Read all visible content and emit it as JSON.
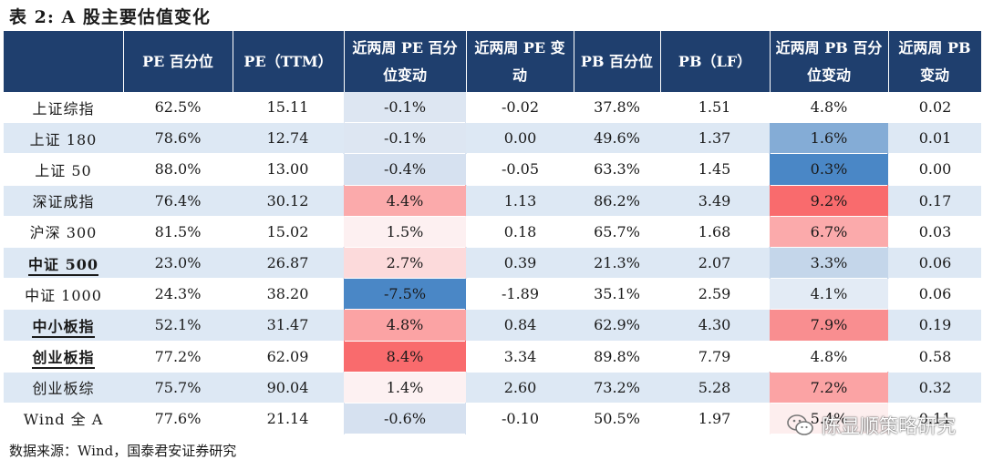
{
  "title": "表 2:  A 股主要估值变化",
  "table": {
    "headers": [
      "",
      "PE 百分位",
      "PE（TTM）",
      "近两周 PE 百分位变动",
      "近两周 PE 变动",
      "PB 百分位",
      "PB（LF）",
      "近两周 PB 百分位变动",
      "近两周 PB 变动"
    ],
    "rows": [
      {
        "name": "上证综指",
        "highlight": false,
        "cells": [
          "62.5%",
          "15.11",
          "-0.1%",
          "-0.02",
          "37.8%",
          "1.51",
          "4.8%",
          "0.02"
        ],
        "pe_heat": "#dde6f2",
        "pb_heat": "#ffffff"
      },
      {
        "name": "上证 180",
        "highlight": false,
        "cells": [
          "78.6%",
          "12.74",
          "-0.1%",
          "0.00",
          "49.6%",
          "1.37",
          "1.6%",
          "0.01"
        ],
        "pe_heat": "#dde6f2",
        "pb_heat": "#84acd6"
      },
      {
        "name": "上证 50",
        "highlight": false,
        "cells": [
          "88.0%",
          "13.00",
          "-0.4%",
          "-0.05",
          "63.3%",
          "1.45",
          "0.3%",
          "0.00"
        ],
        "pe_heat": "#d6e1f0",
        "pb_heat": "#4a87c6"
      },
      {
        "name": "深证成指",
        "highlight": false,
        "cells": [
          "76.4%",
          "30.12",
          "4.4%",
          "1.13",
          "86.2%",
          "3.49",
          "9.2%",
          "0.17"
        ],
        "pe_heat": "#fbaaab",
        "pb_heat": "#f96b6d"
      },
      {
        "name": "沪深 300",
        "highlight": false,
        "cells": [
          "81.5%",
          "15.02",
          "1.5%",
          "0.18",
          "65.7%",
          "1.68",
          "6.7%",
          "0.03"
        ],
        "pe_heat": "#fdf0f1",
        "pb_heat": "#fbaaab"
      },
      {
        "name": "中证 500",
        "highlight": true,
        "cells": [
          "23.0%",
          "26.87",
          "2.7%",
          "0.39",
          "21.3%",
          "2.07",
          "3.3%",
          "0.06"
        ],
        "pe_heat": "#fcdadb",
        "pb_heat": "#c4d6ea"
      },
      {
        "name": "中证 1000",
        "highlight": false,
        "cells": [
          "24.3%",
          "38.20",
          "-7.5%",
          "-1.89",
          "35.1%",
          "2.59",
          "4.1%",
          "0.06"
        ],
        "pe_heat": "#4a87c6",
        "pb_heat": "#e3ebf5"
      },
      {
        "name": "中小板指",
        "highlight": true,
        "cells": [
          "52.1%",
          "31.47",
          "4.8%",
          "0.84",
          "62.9%",
          "4.30",
          "7.9%",
          "0.19"
        ],
        "pe_heat": "#fba3a4",
        "pb_heat": "#f98e90"
      },
      {
        "name": "创业板指",
        "highlight": true,
        "cells": [
          "77.2%",
          "62.09",
          "8.4%",
          "3.34",
          "89.8%",
          "7.79",
          "4.8%",
          "0.58"
        ],
        "pe_heat": "#f96b6d",
        "pb_heat": "#ffffff"
      },
      {
        "name": "创业板综",
        "highlight": false,
        "cells": [
          "75.7%",
          "90.04",
          "1.4%",
          "2.60",
          "73.2%",
          "5.28",
          "7.2%",
          "0.32"
        ],
        "pe_heat": "#fdf1f2",
        "pb_heat": "#fba3a4"
      },
      {
        "name": "Wind 全 A",
        "highlight": false,
        "cells": [
          "77.6%",
          "21.14",
          "-0.6%",
          "-0.10",
          "50.5%",
          "1.97",
          "5.4%",
          "0.11"
        ],
        "pe_heat": "#d6e1f0",
        "pb_heat": "#fdeeee"
      }
    ]
  },
  "source": "数据来源：Wind，国泰君安证券研究",
  "watermark": {
    "text": "陈显顺策略研究",
    "icon": "wechat-icon"
  }
}
